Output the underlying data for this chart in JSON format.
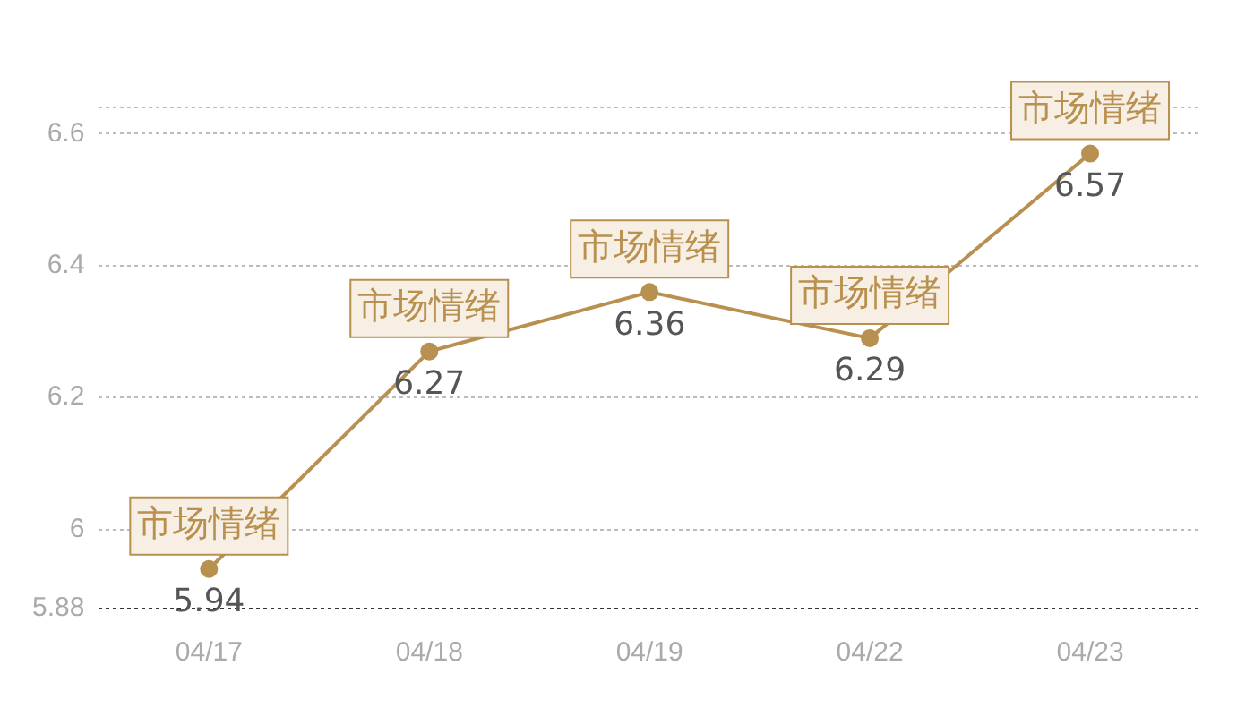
{
  "chart_data": {
    "type": "line",
    "categories": [
      "04/17",
      "04/18",
      "04/19",
      "04/22",
      "04/23"
    ],
    "series": [
      {
        "color": "#b8904f",
        "values": [
          5.94,
          6.27,
          6.36,
          6.29,
          6.57
        ]
      }
    ],
    "ylim": [
      5.88,
      6.64
    ],
    "yticks": [
      5.88,
      6,
      6.2,
      6.4,
      6.6,
      {
        "value": 6.64,
        "label": null
      }
    ],
    "grid": "y",
    "marker": "circle",
    "line_style": "solid",
    "data_labels": true,
    "annotations": [
      {
        "text": "市场情绪",
        "x": "04/17",
        "y": 5.94
      },
      {
        "text": "市场情绪",
        "x": "04/18",
        "y": 6.27
      },
      {
        "text": "市场情绪",
        "x": "04/19",
        "y": 6.36
      },
      {
        "text": "市场情绪",
        "x": "04/22",
        "y": 6.29
      },
      {
        "text": "市场情绪",
        "x": "04/23",
        "y": 6.57
      }
    ]
  }
}
